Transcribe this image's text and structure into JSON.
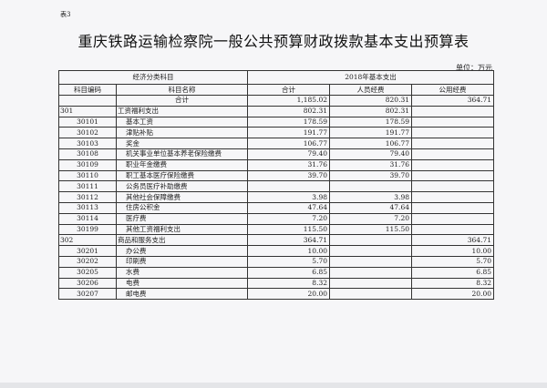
{
  "doc_label": "表3",
  "title": "重庆铁路运输检察院一般公共预算财政拨款基本支出预算表",
  "unit": "单位：万元",
  "header": {
    "group_left": "经济分类科目",
    "group_right": "2018年基本支出",
    "code": "科目编码",
    "name": "科目名称",
    "total": "合计",
    "personnel": "人员经费",
    "public": "公用经费"
  },
  "total_row": {
    "code": "",
    "name": "合计",
    "total": "1,185.02",
    "personnel": "820.31",
    "public": "364.71"
  },
  "rows": [
    {
      "code": "301",
      "name": "工资福利支出",
      "total": "802.31",
      "personnel": "802.31",
      "public": "",
      "level": 1
    },
    {
      "code": "30101",
      "name": "基本工资",
      "total": "178.59",
      "personnel": "178.59",
      "public": "",
      "level": 2
    },
    {
      "code": "30102",
      "name": "津贴补贴",
      "total": "191.77",
      "personnel": "191.77",
      "public": "",
      "level": 2
    },
    {
      "code": "30103",
      "name": "奖金",
      "total": "106.77",
      "personnel": "106.77",
      "public": "",
      "level": 2
    },
    {
      "code": "30108",
      "name": "机关事业单位基本养老保险缴费",
      "total": "79.40",
      "personnel": "79.40",
      "public": "",
      "level": 2
    },
    {
      "code": "30109",
      "name": "职业年金缴费",
      "total": "31.76",
      "personnel": "31.76",
      "public": "",
      "level": 2
    },
    {
      "code": "30110",
      "name": "职工基本医疗保险缴费",
      "total": "39.70",
      "personnel": "39.70",
      "public": "",
      "level": 2
    },
    {
      "code": "30111",
      "name": "公务员医疗补助缴费",
      "total": "",
      "personnel": "",
      "public": "",
      "level": 2
    },
    {
      "code": "30112",
      "name": "其他社会保障缴费",
      "total": "3.98",
      "personnel": "3.98",
      "public": "",
      "level": 2
    },
    {
      "code": "30113",
      "name": "住房公积金",
      "total": "47.64",
      "personnel": "47.64",
      "public": "",
      "level": 2
    },
    {
      "code": "30114",
      "name": "医疗费",
      "total": "7.20",
      "personnel": "7.20",
      "public": "",
      "level": 2
    },
    {
      "code": "30199",
      "name": "其他工资福利支出",
      "total": "115.50",
      "personnel": "115.50",
      "public": "",
      "level": 2
    },
    {
      "code": "302",
      "name": "商品和服务支出",
      "total": "364.71",
      "personnel": "",
      "public": "364.71",
      "level": 1
    },
    {
      "code": "30201",
      "name": "办公费",
      "total": "10.00",
      "personnel": "",
      "public": "10.00",
      "level": 2
    },
    {
      "code": "30202",
      "name": "印刷费",
      "total": "5.70",
      "personnel": "",
      "public": "5.70",
      "level": 2
    },
    {
      "code": "30205",
      "name": "水费",
      "total": "6.85",
      "personnel": "",
      "public": "6.85",
      "level": 2
    },
    {
      "code": "30206",
      "name": "电费",
      "total": "8.32",
      "personnel": "",
      "public": "8.32",
      "level": 2
    },
    {
      "code": "30207",
      "name": "邮电费",
      "total": "20.00",
      "personnel": "",
      "public": "20.00",
      "level": 2
    }
  ]
}
